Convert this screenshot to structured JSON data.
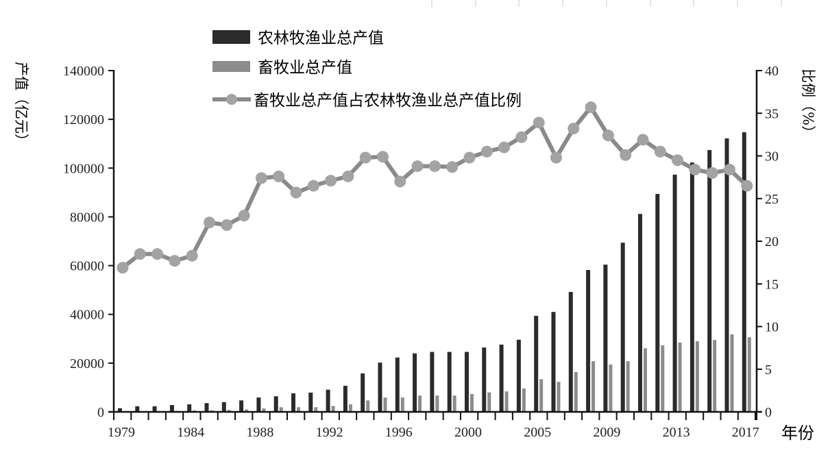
{
  "chart_data": {
    "type": "bar+line",
    "title": "",
    "xlabel": "年份",
    "ylabel": "产值（亿元）",
    "y2label": "比例（%）",
    "ylim": [
      0,
      140000
    ],
    "y2lim": [
      0,
      40
    ],
    "yticks": [
      0,
      20000,
      40000,
      60000,
      80000,
      100000,
      120000,
      140000
    ],
    "y2ticks": [
      0,
      5,
      10,
      15,
      20,
      25,
      30,
      35,
      40
    ],
    "xtick_labels": [
      {
        "index": 0,
        "label": "1979"
      },
      {
        "index": 4,
        "label": "1984"
      },
      {
        "index": 8,
        "label": "1988"
      },
      {
        "index": 12,
        "label": "1992"
      },
      {
        "index": 16,
        "label": "1996"
      },
      {
        "index": 20,
        "label": "2000"
      },
      {
        "index": 24,
        "label": "2005"
      },
      {
        "index": 28,
        "label": "2009"
      },
      {
        "index": 32,
        "label": "2013"
      },
      {
        "index": 36,
        "label": "2017"
      }
    ],
    "categories": [
      "1979",
      "1980",
      "1981",
      "1983",
      "1984",
      "1985",
      "1986",
      "1987",
      "1988",
      "1989",
      "1990",
      "1991",
      "1992",
      "1993",
      "1994",
      "1995",
      "1996",
      "1997",
      "1998",
      "1999",
      "2000",
      "2001",
      "2002",
      "2004",
      "2005",
      "2006",
      "2007",
      "2008",
      "2009",
      "2010",
      "2011",
      "2012",
      "2013",
      "2014",
      "2015",
      "2016",
      "2017"
    ],
    "grid": false,
    "legend_position": "top-center",
    "series": [
      {
        "name": "农林牧渔业总产值",
        "type": "bar",
        "axis": "left",
        "color": "#2b2b2b",
        "values": [
          1500,
          2300,
          2300,
          2800,
          3100,
          3600,
          4000,
          4700,
          5900,
          6400,
          7600,
          7900,
          9100,
          10700,
          15800,
          20200,
          22300,
          24000,
          24600,
          24600,
          24600,
          26400,
          27600,
          29600,
          39400,
          41000,
          49200,
          58200,
          60400,
          69400,
          81200,
          89400,
          97300,
          102300,
          107400,
          112200,
          114700
        ]
      },
      {
        "name": "畜牧业总产值",
        "type": "bar",
        "axis": "left",
        "color": "#8c8c8c",
        "values": [
          200,
          300,
          300,
          400,
          600,
          700,
          800,
          1000,
          1400,
          1900,
          1900,
          1900,
          2400,
          3100,
          4700,
          5900,
          5900,
          6700,
          6700,
          6700,
          7300,
          8000,
          8400,
          9600,
          13400,
          12300,
          16300,
          20800,
          19400,
          20800,
          26100,
          27300,
          28400,
          29000,
          29500,
          31800,
          30600
        ]
      },
      {
        "name": "畜牧业总产值占农林牧渔业总产值比例",
        "type": "line",
        "axis": "right",
        "color": "#8a8a8a",
        "marker_color": "#a3a3a3",
        "values": [
          16.9,
          18.5,
          18.5,
          17.7,
          18.3,
          22.2,
          21.9,
          23.0,
          27.4,
          27.6,
          25.7,
          26.5,
          27.1,
          27.6,
          29.8,
          29.9,
          27.0,
          28.8,
          28.8,
          28.7,
          29.8,
          30.5,
          31.0,
          32.2,
          33.9,
          29.8,
          33.2,
          35.7,
          32.4,
          30.1,
          31.9,
          30.5,
          29.5,
          28.4,
          28.0,
          28.4,
          26.5
        ]
      }
    ]
  },
  "legend": {
    "items": [
      {
        "label": "农林牧渔业总产值",
        "kind": "bar",
        "color": "#2b2b2b"
      },
      {
        "label": "畜牧业总产值",
        "kind": "bar",
        "color": "#8c8c8c"
      },
      {
        "label": "畜牧业总产值占农林牧渔业总产值比例",
        "kind": "line-marker",
        "color": "#8a8a8a"
      }
    ]
  },
  "axes": {
    "left_title": "产值（亿元）",
    "right_title": "比例（%）",
    "x_title": "年份"
  }
}
